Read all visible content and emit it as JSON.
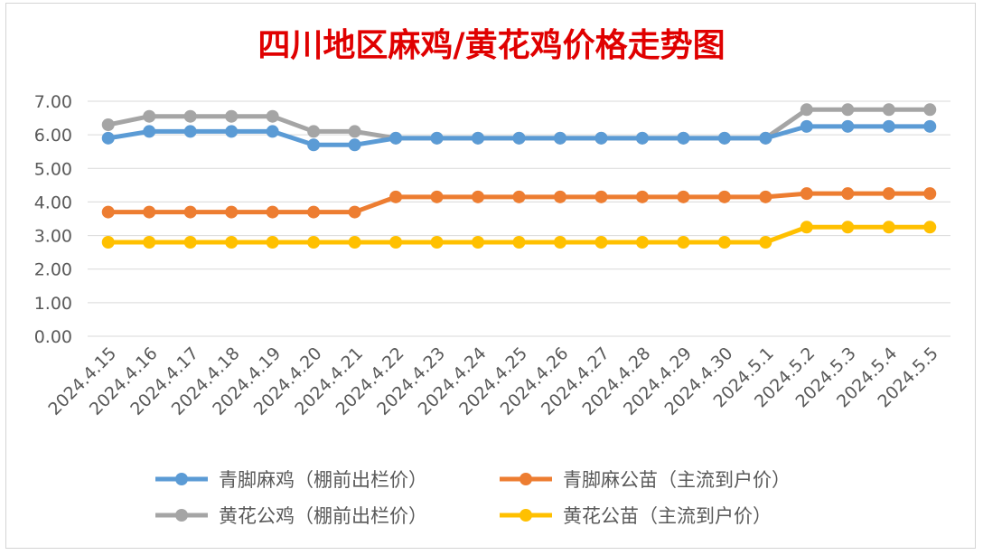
{
  "chart_data": {
    "type": "line",
    "title": "四川地区麻鸡/黄花鸡价格走势图",
    "xlabel": "",
    "ylabel": "",
    "ylim": [
      0,
      7
    ],
    "yticks": [
      "0.00",
      "1.00",
      "2.00",
      "3.00",
      "4.00",
      "5.00",
      "6.00",
      "7.00"
    ],
    "grid": true,
    "legend_position": "bottom",
    "categories": [
      "2024.4.15",
      "2024.4.16",
      "2024.4.17",
      "2024.4.18",
      "2024.4.19",
      "2024.4.20",
      "2024.4.21",
      "2024.4.22",
      "2024.4.23",
      "2024.4.24",
      "2024.4.25",
      "2024.4.26",
      "2024.4.27",
      "2024.4.28",
      "2024.4.29",
      "2024.4.30",
      "2024.5.1",
      "2024.5.2",
      "2024.5.3",
      "2024.5.4",
      "2024.5.5"
    ],
    "series": [
      {
        "name": "青脚麻鸡（棚前出栏价）",
        "color": "#5B9BD5",
        "values": [
          5.9,
          6.1,
          6.1,
          6.1,
          6.1,
          5.7,
          5.7,
          5.9,
          5.9,
          5.9,
          5.9,
          5.9,
          5.9,
          5.9,
          5.9,
          5.9,
          5.9,
          6.25,
          6.25,
          6.25,
          6.25
        ]
      },
      {
        "name": "青脚麻公苗（主流到户价）",
        "color": "#ED7D31",
        "values": [
          3.7,
          3.7,
          3.7,
          3.7,
          3.7,
          3.7,
          3.7,
          4.15,
          4.15,
          4.15,
          4.15,
          4.15,
          4.15,
          4.15,
          4.15,
          4.15,
          4.15,
          4.25,
          4.25,
          4.25,
          4.25
        ]
      },
      {
        "name": "黄花公鸡（棚前出栏价）",
        "color": "#A5A5A5",
        "values": [
          6.3,
          6.55,
          6.55,
          6.55,
          6.55,
          6.1,
          6.1,
          5.9,
          5.9,
          5.9,
          5.9,
          5.9,
          5.9,
          5.9,
          5.9,
          5.9,
          5.9,
          6.75,
          6.75,
          6.75,
          6.75
        ]
      },
      {
        "name": "黄花公苗（主流到户价）",
        "color": "#FFC000",
        "values": [
          2.8,
          2.8,
          2.8,
          2.8,
          2.8,
          2.8,
          2.8,
          2.8,
          2.8,
          2.8,
          2.8,
          2.8,
          2.8,
          2.8,
          2.8,
          2.8,
          2.8,
          3.25,
          3.25,
          3.25,
          3.25
        ]
      }
    ],
    "title_color": "#E00000"
  }
}
